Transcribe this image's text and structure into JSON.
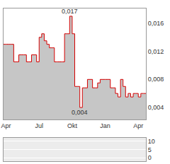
{
  "chart_data": [
    {
      "type": "area",
      "categories": [
        null,
        "Apr",
        null,
        null,
        null,
        null,
        null,
        null,
        null,
        null,
        null,
        null,
        null,
        null,
        "Jul",
        null,
        null,
        null,
        null,
        null,
        null,
        null,
        null,
        null,
        null,
        null,
        null,
        "Okt",
        null,
        null,
        null,
        null,
        null,
        null,
        null,
        null,
        null,
        null,
        null,
        null,
        "Jan",
        null,
        null,
        null,
        null,
        null,
        null,
        null,
        null,
        null,
        null,
        null,
        null,
        "Apr",
        null,
        null,
        null
      ],
      "values": [
        0.013,
        0.013,
        0.013,
        0.013,
        0.0105,
        0.0105,
        0.0115,
        0.0115,
        0.0115,
        0.0105,
        0.0105,
        0.0115,
        0.0115,
        0.0105,
        0.014,
        0.0145,
        0.0135,
        0.013,
        0.0125,
        0.0125,
        0.0105,
        0.0105,
        0.0105,
        0.0105,
        0.0145,
        0.0145,
        0.017,
        0.0145,
        0.007,
        0.007,
        0.004,
        0.0068,
        0.0068,
        0.008,
        0.008,
        0.0068,
        0.0068,
        0.0075,
        0.008,
        0.008,
        0.008,
        0.008,
        0.0068,
        0.0068,
        0.006,
        0.0055,
        0.008,
        0.007,
        0.0055,
        0.006,
        0.0055,
        0.006,
        0.006,
        0.0055,
        0.006,
        0.006,
        0.006
      ],
      "color": "#d40000",
      "ylim": [
        0.0023,
        0.0181
      ],
      "yticks": [
        {
          "value": 0.004,
          "label": "0,004"
        },
        {
          "value": 0.008,
          "label": "0,008"
        },
        {
          "value": 0.012,
          "label": "0,012"
        },
        {
          "value": 0.016,
          "label": "0,016"
        }
      ],
      "annotations": [
        {
          "text": "0,017",
          "x": 26,
          "y": 0.017
        },
        {
          "text": "0,004",
          "x": 30,
          "y": 0.004
        }
      ],
      "grid": false
    },
    {
      "type": "bar",
      "ylim": [
        -2,
        12
      ],
      "yticks": [
        0,
        5,
        10
      ],
      "grid": true,
      "tick_labels": "y"
    }
  ]
}
